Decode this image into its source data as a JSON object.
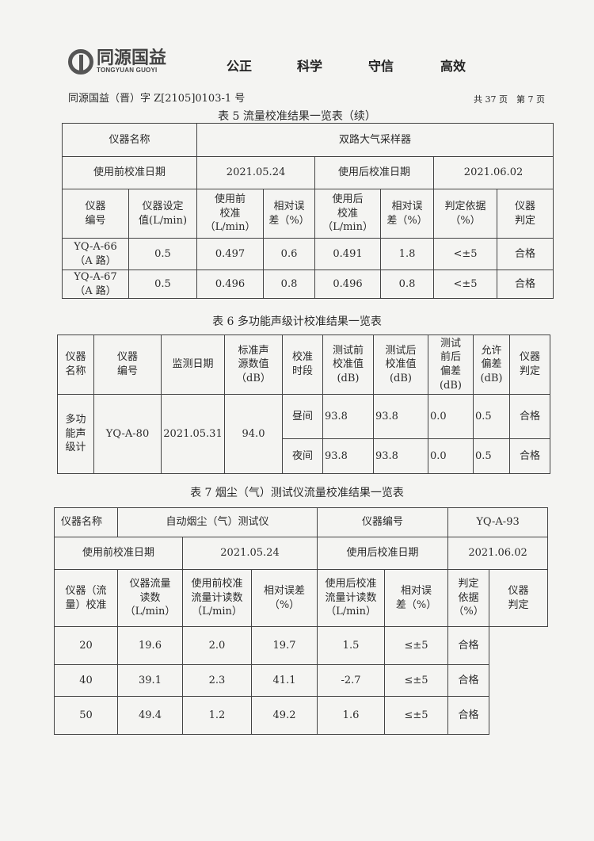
{
  "header": {
    "logo_cn": "同源国益",
    "logo_en": "TONGYUAN GUOYI",
    "motto": [
      "公正",
      "科学",
      "守信",
      "高效"
    ],
    "doc_number": "同源国益（晋）字 Z[2105]0103-1 号",
    "pages": "共 37 页　第 7 页"
  },
  "table5": {
    "title": "表 5 流量校准结果一览表（续）",
    "name_label": "仪器名称",
    "name_value": "双路大气采样器",
    "pre_date_label": "使用前校准日期",
    "pre_date": "2021.05.24",
    "post_date_label": "使用后校准日期",
    "post_date": "2021.06.02",
    "headers": [
      "仪器\n编号",
      "仪器设定\n值(L/min)",
      "使用前\n校准\n（L/min）",
      "相对误\n差（%）",
      "使用后\n校准\n（L/min）",
      "相对误\n差（%）",
      "判定依据\n（%）",
      "仪器\n判定"
    ],
    "rows": [
      [
        "YQ-A-66\n（A 路）",
        "0.5",
        "0.497",
        "0.6",
        "0.491",
        "1.8",
        "<±5",
        "合格"
      ],
      [
        "YQ-A-67\n（A 路）",
        "0.5",
        "0.496",
        "0.8",
        "0.496",
        "0.8",
        "<±5",
        "合格"
      ]
    ]
  },
  "table6": {
    "title": "表 6 多功能声级计校准结果一览表",
    "headers": [
      "仪器\n名称",
      "仪器\n编号",
      "监测日期",
      "标准声\n源数值\n（dB）",
      "校准\n时段",
      "测试前\n校准值\n(dB)",
      "测试后\n校准值\n(dB)",
      "测试\n前后\n偏差\n(dB)",
      "允许\n偏差\n(dB)",
      "仪器\n判定"
    ],
    "instrument": "多功\n能声\n级计",
    "id": "YQ-A-80",
    "date": "2021.05.31",
    "standard": "94.0",
    "rows": [
      [
        "昼间",
        "93.8",
        "93.8",
        "0.0",
        "0.5",
        "合格"
      ],
      [
        "夜间",
        "93.8",
        "93.8",
        "0.0",
        "0.5",
        "合格"
      ]
    ]
  },
  "table7": {
    "title": "表 7 烟尘（气）测试仪流量校准结果一览表",
    "name_label": "仪器名称",
    "name_value": "自动烟尘（气）测试仪",
    "id_label": "仪器编号",
    "id_value": "YQ-A-93",
    "pre_date_label": "使用前校准日期",
    "pre_date": "2021.05.24",
    "post_date_label": "使用后校准日期",
    "post_date": "2021.06.02",
    "row_label": "仪器（流\n量）校准",
    "headers": [
      "仪器流量\n读数\n（L/min）",
      "使用前校准\n流量计读数\n（L/min）",
      "相对误差\n（%）",
      "使用后校准\n流量计读数\n（L/min）",
      "相对误\n差（%）",
      "判定\n依据\n（%）",
      "仪器\n判定"
    ],
    "rows": [
      [
        "20",
        "19.6",
        "2.0",
        "19.7",
        "1.5",
        "≤±5",
        "合格"
      ],
      [
        "40",
        "39.1",
        "2.3",
        "41.1",
        "-2.7",
        "≤±5",
        "合格"
      ],
      [
        "50",
        "49.4",
        "1.2",
        "49.2",
        "1.6",
        "≤±5",
        "合格"
      ]
    ]
  }
}
